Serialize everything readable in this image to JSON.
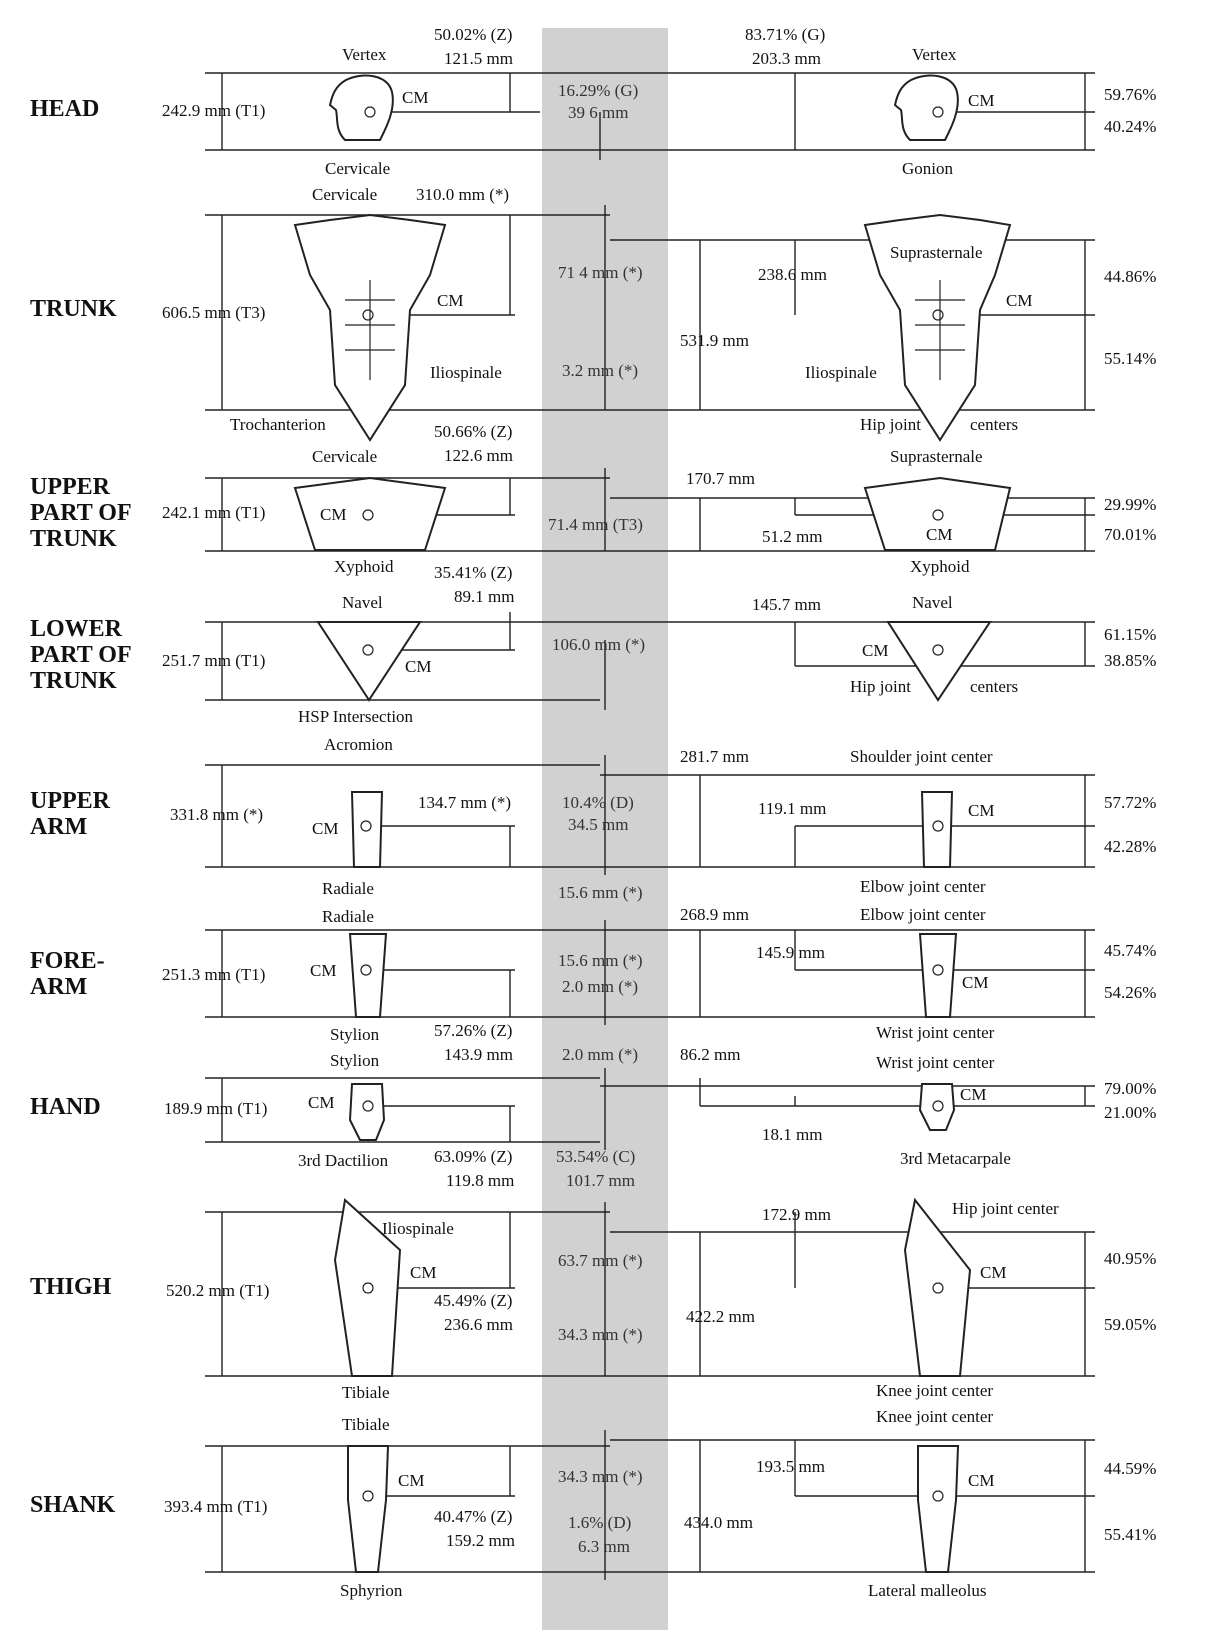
{
  "segments": [
    {
      "name": "HEAD",
      "left": {
        "top": "Vertex",
        "bottom": "Cervicale",
        "length": "242.9 mm (T1)",
        "cm": "CM",
        "cm_pct": "50.02% (Z)",
        "cm_mm": "121.5 mm"
      },
      "center": [
        "16.29% (G)",
        "39 6 mm"
      ],
      "right": {
        "top": "Vertex",
        "bottom": "Gonion",
        "cm": "CM",
        "cm_pct": "83.71% (G)",
        "cm_mm": "203.3 mm",
        "pct_top": "59.76%",
        "pct_bottom": "40.24%"
      }
    },
    {
      "name": "TRUNK",
      "left": {
        "top": "Cervicale",
        "bottom": "Trochanterion",
        "mid": "Iliospinale",
        "length": "606.5 mm (T3)",
        "cm": "CM",
        "cm_len": "310.0 mm (*)"
      },
      "center": [
        "71 4 mm (*)",
        "3.2 mm (*)"
      ],
      "right": {
        "top": "Suprasternale",
        "bottom": "Hip joint",
        "bottom2": "centers",
        "mid": "Iliospinale",
        "cm": "CM",
        "cm_len": "238.6 mm",
        "length": "531.9 mm",
        "pct_top": "44.86%",
        "pct_bottom": "55.14%"
      }
    },
    {
      "name": "UPPER PART OF TRUNK",
      "name_lines": [
        "UPPER",
        "PART OF",
        "TRUNK"
      ],
      "left": {
        "top": "Cervicale",
        "bottom": "Xyphoid",
        "length": "242.1 mm (T1)",
        "cm": "CM",
        "cm_pct": "50.66% (Z)",
        "cm_mm": "122.6 mm"
      },
      "center": [
        "71.4 mm (T3)"
      ],
      "right": {
        "top": "Suprasternale",
        "bottom": "Xyphoid",
        "cm": "CM",
        "length": "170.7 mm",
        "cm_len": "51.2 mm",
        "pct_top": "29.99%",
        "pct_bottom": "70.01%"
      }
    },
    {
      "name": "LOWER PART OF TRUNK",
      "name_lines": [
        "LOWER",
        "PART OF",
        "TRUNK"
      ],
      "left": {
        "top": "Navel",
        "bottom": "HSP Intersection",
        "length": "251.7 mm (T1)",
        "cm": "CM",
        "cm_pct": "35.41% (Z)",
        "cm_mm": "89.1 mm"
      },
      "center": [
        "106.0 mm (*)"
      ],
      "right": {
        "top": "Navel",
        "bottom": "Hip joint",
        "bottom2": "centers",
        "cm": "CM",
        "cm_len": "145.7 mm",
        "pct_top": "61.15%",
        "pct_bottom": "38.85%"
      }
    },
    {
      "name": "UPPER ARM",
      "name_lines": [
        "UPPER",
        "ARM"
      ],
      "left": {
        "top": "Acromion",
        "bottom": "Radiale",
        "length": "331.8 mm (*)",
        "cm": "CM",
        "cm_len": "134.7 mm (*)"
      },
      "center": [
        "10.4% (D)",
        "34.5 mm",
        "15.6 mm (*)"
      ],
      "right": {
        "top": "Shoulder joint center",
        "bottom": "Elbow joint center",
        "cm": "CM",
        "length": "281.7 mm",
        "cm_len": "119.1 mm",
        "pct_top": "57.72%",
        "pct_bottom": "42.28%"
      }
    },
    {
      "name": "FORE-ARM",
      "name_lines": [
        "FORE-",
        "ARM"
      ],
      "left": {
        "top": "Radiale",
        "bottom": "Stylion",
        "length": "251.3 mm (T1)",
        "cm": "CM",
        "cm_pct": "57.26% (Z)",
        "cm_mm": "143.9 mm"
      },
      "center": [
        "15.6 mm (*)",
        "2.0 mm (*)"
      ],
      "right": {
        "top": "Elbow joint center",
        "bottom": "Wrist joint center",
        "cm": "CM",
        "length": "268.9 mm",
        "cm_len": "145.9 mm",
        "pct_top": "45.74%",
        "pct_bottom": "54.26%"
      }
    },
    {
      "name": "HAND",
      "left": {
        "top": "Stylion",
        "bottom": "3rd Dactilion",
        "length": "189.9 mm (T1)",
        "cm": "CM",
        "cm_pct": "63.09% (Z)",
        "cm_mm": "119.8 mm"
      },
      "center": [
        "2.0 mm (*)",
        "53.54% (C)",
        "101.7 mm"
      ],
      "right": {
        "top": "Wrist joint center",
        "bottom": "3rd Metacarpale",
        "cm": "CM",
        "length": "86.2 mm",
        "cm_len": "18.1 mm",
        "pct_top": "79.00%",
        "pct_bottom": "21.00%"
      }
    },
    {
      "name": "THIGH",
      "left": {
        "mid": "Iliospinale",
        "bottom": "Tibiale",
        "length": "520.2 mm (T1)",
        "cm": "CM",
        "cm_pct": "45.49% (Z)",
        "cm_mm": "236.6 mm"
      },
      "center": [
        "63.7 mm (*)",
        "34.3 mm (*)"
      ],
      "right": {
        "top": "Hip joint center",
        "bottom": "Knee joint center",
        "cm": "CM",
        "length": "422.2 mm",
        "cm_len": "172.9 mm",
        "pct_top": "40.95%",
        "pct_bottom": "59.05%"
      }
    },
    {
      "name": "SHANK",
      "left": {
        "top": "Tibiale",
        "bottom": "Sphyrion",
        "length": "393.4 mm (T1)",
        "cm": "CM",
        "cm_pct": "40.47% (Z)",
        "cm_mm": "159.2 mm"
      },
      "center": [
        "34.3 mm (*)",
        "1.6% (D)",
        "6.3 mm"
      ],
      "right": {
        "top": "Knee joint center",
        "bottom": "Lateral malleolus",
        "cm": "CM",
        "length": "434.0 mm",
        "cm_len": "193.5 mm",
        "pct_top": "44.59%",
        "pct_bottom": "55.41%"
      }
    }
  ],
  "colors": {
    "band": "#c9c9c9",
    "ink": "#111111"
  }
}
